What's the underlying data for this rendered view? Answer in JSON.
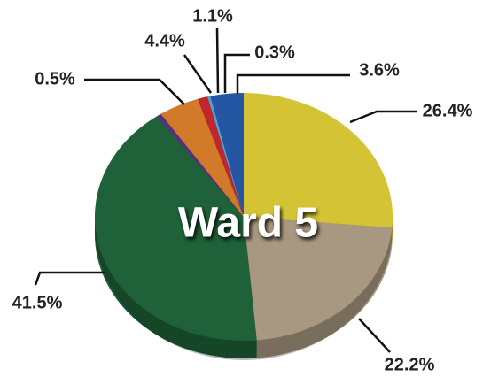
{
  "chart_data": {
    "type": "pie",
    "title": "Ward 5",
    "values": [
      26.4,
      22.2,
      41.5,
      0.5,
      4.4,
      1.1,
      0.3,
      3.6
    ],
    "value_labels": [
      "26.4%",
      "22.2%",
      "41.5%",
      "0.5%",
      "4.4%",
      "1.1%",
      "0.3%",
      "3.6%"
    ],
    "colors": [
      "#d4c435",
      "#a89882",
      "#1f6138",
      "#5a2d82",
      "#d07a2a",
      "#c0272d",
      "#4ea3d8",
      "#2456a4"
    ]
  }
}
